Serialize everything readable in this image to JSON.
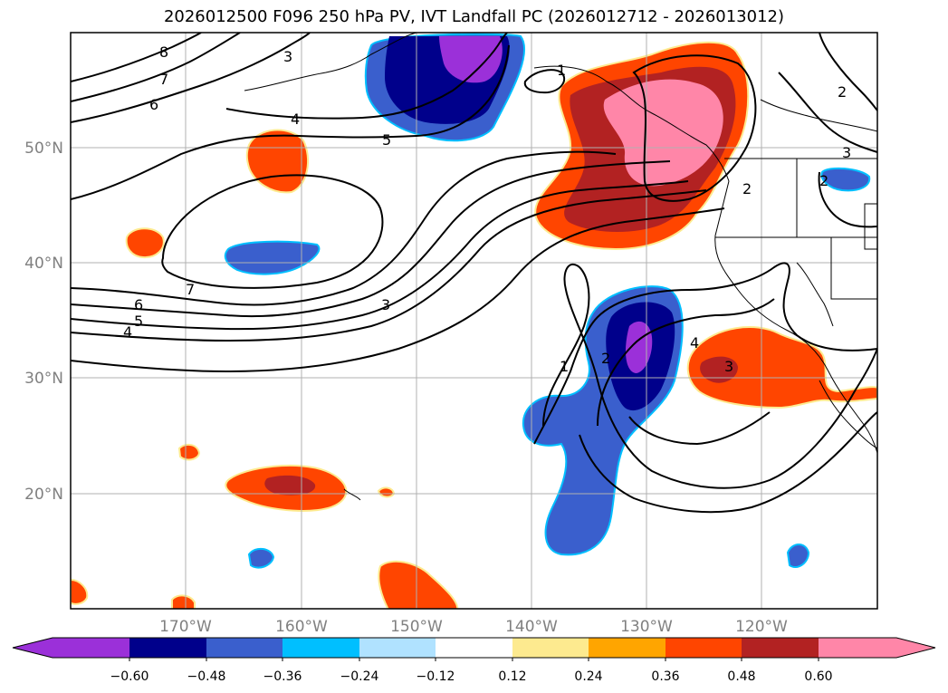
{
  "title": "2026012500 F096 250 hPa PV, IVT Landfall PC (2026012712 - 2026013012)",
  "map": {
    "lat_labels": [
      "50°N",
      "40°N",
      "30°N",
      "20°N"
    ],
    "lon_labels": [
      "170°W",
      "160°W",
      "150°W",
      "140°W",
      "130°W",
      "120°W"
    ],
    "contour_labels": [
      "8",
      "7",
      "6",
      "4",
      "5",
      "3",
      "7",
      "6",
      "5",
      "4",
      "3",
      "2",
      "1",
      "2",
      "1",
      "4",
      "3",
      "2",
      "3",
      "2"
    ]
  },
  "colorbar": {
    "tick_labels": [
      "−0.60",
      "−0.48",
      "−0.36",
      "−0.24",
      "−0.12",
      "0.12",
      "0.24",
      "0.36",
      "0.48",
      "0.60"
    ],
    "colors": [
      "#9b30d9",
      "#00008b",
      "#3a5fcd",
      "#00bfff",
      "#b0e2ff",
      "#ffffff",
      "#fdea8f",
      "#ffa500",
      "#ff4500",
      "#b22222",
      "#ff86a8"
    ]
  }
}
